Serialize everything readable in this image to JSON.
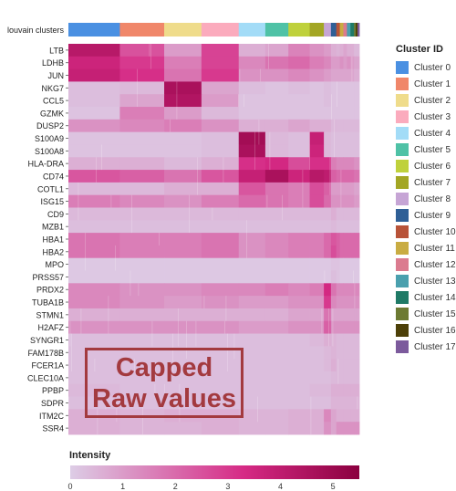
{
  "chart_data": {
    "type": "heatmap",
    "row_labels": [
      "LTB",
      "LDHB",
      "JUN",
      "NKG7",
      "CCL5",
      "GZMK",
      "DUSP2",
      "S100A9",
      "S100A8",
      "HLA-DRA",
      "CD74",
      "COTL1",
      "ISG15",
      "CD9",
      "MZB1",
      "HBA1",
      "HBA2",
      "MPO",
      "PRSS57",
      "PRDX2",
      "TUBA1B",
      "STMN1",
      "H2AFZ",
      "SYNGR1",
      "FAM178B",
      "FCER1A",
      "CLEC10A",
      "PPBP",
      "SDPR",
      "ITM2C",
      "SSR4"
    ],
    "annotation_label": "louvain clusters",
    "legend_title": "Cluster ID",
    "clusters": [
      {
        "name": "Cluster 0",
        "color": "#4a90e2",
        "width": 29
      },
      {
        "name": "Cluster 1",
        "color": "#f0876a",
        "width": 25
      },
      {
        "name": "Cluster 2",
        "color": "#efdc8b",
        "width": 21
      },
      {
        "name": "Cluster 3",
        "color": "#fbabbd",
        "width": 21
      },
      {
        "name": "Cluster 4",
        "color": "#a3dcf7",
        "width": 15
      },
      {
        "name": "Cluster 5",
        "color": "#4fc2a6",
        "width": 13
      },
      {
        "name": "Cluster 6",
        "color": "#bfd13c",
        "width": 12
      },
      {
        "name": "Cluster 7",
        "color": "#a3a624",
        "width": 8
      },
      {
        "name": "Cluster 8",
        "color": "#c6a5d5",
        "width": 4
      },
      {
        "name": "Cluster 9",
        "color": "#2f5f96",
        "width": 3
      },
      {
        "name": "Cluster 10",
        "color": "#b85338",
        "width": 2
      },
      {
        "name": "Cluster 11",
        "color": "#c9ac42",
        "width": 2
      },
      {
        "name": "Cluster 12",
        "color": "#db7b8f",
        "width": 2
      },
      {
        "name": "Cluster 13",
        "color": "#4aa0ae",
        "width": 2
      },
      {
        "name": "Cluster 14",
        "color": "#1f7a66",
        "width": 2
      },
      {
        "name": "Cluster 15",
        "color": "#6d7a33",
        "width": 1
      },
      {
        "name": "Cluster 16",
        "color": "#4d4008",
        "width": 1
      },
      {
        "name": "Cluster 17",
        "color": "#7c5a9c",
        "width": 1
      }
    ],
    "intensity": [
      [
        4.2,
        2.5,
        1.0,
        2.8,
        0.6,
        0.8,
        1.5,
        1.2,
        1.0,
        0.6,
        0.5,
        0.6,
        0.8,
        0.6,
        0.6,
        0.4,
        0.4,
        0.4
      ],
      [
        3.6,
        3.0,
        1.6,
        2.8,
        1.4,
        1.8,
        2.0,
        1.6,
        1.4,
        1.0,
        1.0,
        1.2,
        1.0,
        1.2,
        1.0,
        0.8,
        0.8,
        0.8
      ],
      [
        3.8,
        3.2,
        1.8,
        3.0,
        1.2,
        1.2,
        1.4,
        1.2,
        1.0,
        0.8,
        0.8,
        0.8,
        0.8,
        0.8,
        0.8,
        0.6,
        0.6,
        0.6
      ],
      [
        0.3,
        0.4,
        4.6,
        0.8,
        0.3,
        0.2,
        0.3,
        0.2,
        0.3,
        0.2,
        0.2,
        0.2,
        0.2,
        0.2,
        0.2,
        0.2,
        0.2,
        0.2
      ],
      [
        0.3,
        0.8,
        4.4,
        1.0,
        0.2,
        0.2,
        0.2,
        0.2,
        0.3,
        0.2,
        0.2,
        0.2,
        0.2,
        0.2,
        0.2,
        0.2,
        0.2,
        0.2
      ],
      [
        0.2,
        1.6,
        1.0,
        0.4,
        0.2,
        0.2,
        0.2,
        0.2,
        0.2,
        0.2,
        0.2,
        0.2,
        0.2,
        0.2,
        0.2,
        0.2,
        0.2,
        0.2
      ],
      [
        1.2,
        1.4,
        1.6,
        1.2,
        0.6,
        0.6,
        0.8,
        0.6,
        0.6,
        0.4,
        0.4,
        0.4,
        0.4,
        0.4,
        0.4,
        0.4,
        0.4,
        0.4
      ],
      [
        0.2,
        0.2,
        0.2,
        0.3,
        4.8,
        0.4,
        0.3,
        3.8,
        0.4,
        0.3,
        0.3,
        0.3,
        0.3,
        0.3,
        0.3,
        0.3,
        0.3,
        0.3
      ],
      [
        0.2,
        0.2,
        0.2,
        0.3,
        4.6,
        0.4,
        0.3,
        3.6,
        0.4,
        0.3,
        0.3,
        0.3,
        0.3,
        0.3,
        0.3,
        0.3,
        0.3,
        0.3
      ],
      [
        0.6,
        0.6,
        0.4,
        0.6,
        3.2,
        3.4,
        2.6,
        3.2,
        3.2,
        1.6,
        1.4,
        1.4,
        1.4,
        1.4,
        1.4,
        1.2,
        1.2,
        1.2
      ],
      [
        2.4,
        2.2,
        1.8,
        2.4,
        3.8,
        4.6,
        3.6,
        4.2,
        4.0,
        2.2,
        2.0,
        2.0,
        2.0,
        2.0,
        2.0,
        1.8,
        1.8,
        1.8
      ],
      [
        0.4,
        0.4,
        0.6,
        0.6,
        2.4,
        1.8,
        1.6,
        2.6,
        2.2,
        1.0,
        1.0,
        1.0,
        1.0,
        1.0,
        1.0,
        0.8,
        0.8,
        0.8
      ],
      [
        1.6,
        1.4,
        1.2,
        1.6,
        2.0,
        1.8,
        1.6,
        2.6,
        2.0,
        1.2,
        1.2,
        1.2,
        1.2,
        1.2,
        1.2,
        1.0,
        1.0,
        1.0
      ],
      [
        0.4,
        0.4,
        0.4,
        0.4,
        0.4,
        0.4,
        0.4,
        0.4,
        0.4,
        0.6,
        0.4,
        0.4,
        0.4,
        0.4,
        0.4,
        0.4,
        0.4,
        0.4
      ],
      [
        0.3,
        0.3,
        0.3,
        0.3,
        0.3,
        0.3,
        0.3,
        0.3,
        0.3,
        0.4,
        0.3,
        0.3,
        0.3,
        0.3,
        0.3,
        0.3,
        0.3,
        0.3
      ],
      [
        1.8,
        1.6,
        1.6,
        1.8,
        1.2,
        1.4,
        1.6,
        1.6,
        2.0,
        2.4,
        2.2,
        2.0,
        2.0,
        2.0,
        2.0,
        2.0,
        2.0,
        2.0
      ],
      [
        1.8,
        1.6,
        1.6,
        1.8,
        1.2,
        1.4,
        1.6,
        1.6,
        2.0,
        2.6,
        2.2,
        2.0,
        2.0,
        2.0,
        2.0,
        2.0,
        2.0,
        2.0
      ],
      [
        0.1,
        0.1,
        0.1,
        0.1,
        0.1,
        0.1,
        0.1,
        0.1,
        0.1,
        0.2,
        0.2,
        0.1,
        0.1,
        0.1,
        0.1,
        0.1,
        0.1,
        0.1
      ],
      [
        0.1,
        0.1,
        0.1,
        0.1,
        0.1,
        0.1,
        0.1,
        0.1,
        0.1,
        0.3,
        0.2,
        0.1,
        0.1,
        0.1,
        0.1,
        0.1,
        0.1,
        0.1
      ],
      [
        1.4,
        1.2,
        1.2,
        1.4,
        1.4,
        1.6,
        1.4,
        1.6,
        3.4,
        1.8,
        1.4,
        1.4,
        1.4,
        1.4,
        1.4,
        1.4,
        1.4,
        1.4
      ],
      [
        1.4,
        1.2,
        1.0,
        1.2,
        1.0,
        1.0,
        1.2,
        1.2,
        3.0,
        1.4,
        1.2,
        1.2,
        1.2,
        1.2,
        1.2,
        1.2,
        1.2,
        1.2
      ],
      [
        0.6,
        0.6,
        0.6,
        0.6,
        0.6,
        0.6,
        0.8,
        0.8,
        1.8,
        0.8,
        0.8,
        0.8,
        0.8,
        0.8,
        0.8,
        0.8,
        0.8,
        0.8
      ],
      [
        1.2,
        1.2,
        1.2,
        1.2,
        1.0,
        1.0,
        1.2,
        1.2,
        2.2,
        1.2,
        1.2,
        1.2,
        1.2,
        1.2,
        1.2,
        1.2,
        1.2,
        1.2
      ],
      [
        0.3,
        0.3,
        0.3,
        0.3,
        0.3,
        0.3,
        0.3,
        0.4,
        0.6,
        0.5,
        0.4,
        0.4,
        0.4,
        0.4,
        0.4,
        0.4,
        0.4,
        0.4
      ],
      [
        0.3,
        0.3,
        0.3,
        0.3,
        0.3,
        0.3,
        0.3,
        0.3,
        0.4,
        0.5,
        0.4,
        0.4,
        0.4,
        0.4,
        0.4,
        0.4,
        0.4,
        0.4
      ],
      [
        0.3,
        0.3,
        0.3,
        0.3,
        0.3,
        0.3,
        0.3,
        0.3,
        0.4,
        0.6,
        0.4,
        0.4,
        0.4,
        0.4,
        0.4,
        0.4,
        0.4,
        0.4
      ],
      [
        0.3,
        0.3,
        0.3,
        0.3,
        0.3,
        0.3,
        0.3,
        0.3,
        0.3,
        0.4,
        0.4,
        0.4,
        0.4,
        0.4,
        0.4,
        0.4,
        0.4,
        0.4
      ],
      [
        0.4,
        0.3,
        0.3,
        0.3,
        0.3,
        0.3,
        0.3,
        0.4,
        0.4,
        0.6,
        0.6,
        0.6,
        0.6,
        0.6,
        0.6,
        0.6,
        0.6,
        0.6
      ],
      [
        0.3,
        0.3,
        0.3,
        0.3,
        0.3,
        0.3,
        0.3,
        0.3,
        0.3,
        0.5,
        0.5,
        0.5,
        0.5,
        0.5,
        0.5,
        0.5,
        0.5,
        0.5
      ],
      [
        0.6,
        0.5,
        0.6,
        0.6,
        0.5,
        0.5,
        0.6,
        0.6,
        1.4,
        0.8,
        0.6,
        0.6,
        0.6,
        0.6,
        0.6,
        0.6,
        0.6,
        0.6
      ],
      [
        0.6,
        0.5,
        0.5,
        0.6,
        0.5,
        0.5,
        0.6,
        0.6,
        1.2,
        0.8,
        1.2,
        1.2,
        1.2,
        1.2,
        1.2,
        1.2,
        1.2,
        1.2
      ]
    ],
    "colorbar": {
      "title": "Intensity",
      "min": 0,
      "max": 5.5,
      "ticks": [
        0,
        1,
        2,
        3,
        4,
        5
      ],
      "low_color": "#ddcde6",
      "high_color": "#8b003f"
    },
    "annotation": [
      "Capped",
      "Raw values"
    ]
  }
}
